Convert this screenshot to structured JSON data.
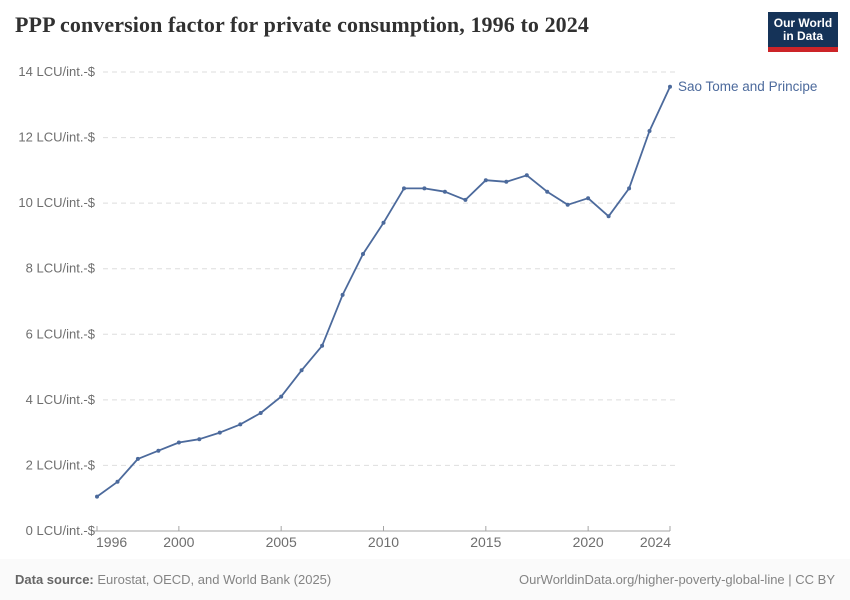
{
  "header": {
    "title": "PPP conversion factor for private consumption, 1996 to 2024"
  },
  "logo": {
    "line1": "Our World",
    "line2": "in Data",
    "bg_color": "#153358",
    "accent_color": "#cc2428"
  },
  "chart_data": {
    "type": "line",
    "title": "PPP conversion factor for private consumption, 1996 to 2024",
    "xlabel": "",
    "ylabel": "",
    "y_tick_suffix": " LCU/int.-$",
    "xlim": [
      1996,
      2024
    ],
    "ylim": [
      0,
      14
    ],
    "x_ticks": [
      1996,
      2000,
      2005,
      2010,
      2015,
      2020,
      2024
    ],
    "y_ticks": [
      0,
      2,
      4,
      6,
      8,
      10,
      12,
      14
    ],
    "grid": "horizontal-dashed",
    "legend_position": "end-of-line-label",
    "series": [
      {
        "name": "Sao Tome and Principe",
        "color": "#4c6a9c",
        "x": [
          1996,
          1997,
          1998,
          1999,
          2000,
          2001,
          2002,
          2003,
          2004,
          2005,
          2006,
          2007,
          2008,
          2009,
          2010,
          2011,
          2012,
          2013,
          2014,
          2015,
          2016,
          2017,
          2018,
          2019,
          2020,
          2021,
          2022,
          2023,
          2024
        ],
        "values": [
          1.05,
          1.5,
          2.2,
          2.45,
          2.7,
          2.8,
          3.0,
          3.25,
          3.6,
          4.1,
          4.9,
          5.65,
          7.2,
          8.45,
          9.4,
          10.45,
          10.45,
          10.35,
          10.1,
          10.7,
          10.65,
          10.85,
          10.35,
          9.95,
          10.15,
          9.6,
          10.45,
          12.2,
          13.55
        ]
      }
    ],
    "colors": {
      "line": "#4c6a9c",
      "gridline": "#dedede",
      "axis": "#a5a5a5",
      "tick_label": "#6e6e6e",
      "title": "#313131"
    }
  },
  "footer": {
    "source_label": "Data source:",
    "source_text": " Eurostat, OECD, and World Bank (2025)",
    "link_text": "OurWorldinData.org/higher-poverty-global-line | CC BY"
  }
}
